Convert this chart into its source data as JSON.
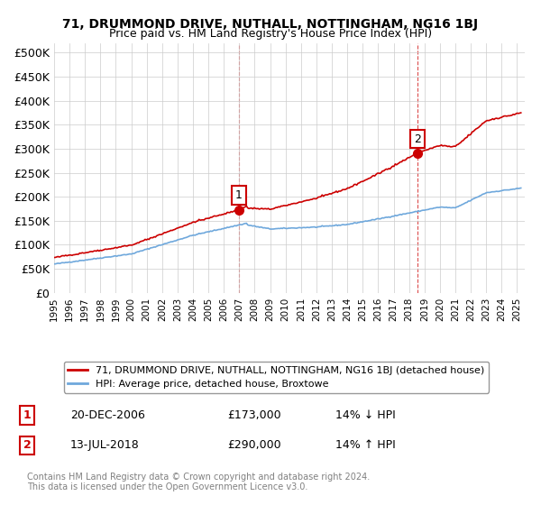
{
  "title": "71, DRUMMOND DRIVE, NUTHALL, NOTTINGHAM, NG16 1BJ",
  "subtitle": "Price paid vs. HM Land Registry's House Price Index (HPI)",
  "ylabel": "",
  "xlim_start": 1995.0,
  "xlim_end": 2025.5,
  "ylim": [
    0,
    520000
  ],
  "yticks": [
    0,
    50000,
    100000,
    150000,
    200000,
    250000,
    300000,
    350000,
    400000,
    450000,
    500000
  ],
  "ytick_labels": [
    "£0",
    "£50K",
    "£100K",
    "£150K",
    "£200K",
    "£250K",
    "£300K",
    "£350K",
    "£400K",
    "£450K",
    "£500K"
  ],
  "hpi_color": "#6fa8dc",
  "price_color": "#cc0000",
  "marker_color": "#cc0000",
  "sale1_x": 2006.97,
  "sale1_y": 173000,
  "sale1_label": "1",
  "sale2_x": 2018.54,
  "sale2_y": 290000,
  "sale2_label": "2",
  "legend_line1": "71, DRUMMOND DRIVE, NUTHALL, NOTTINGHAM, NG16 1BJ (detached house)",
  "legend_line2": "HPI: Average price, detached house, Broxtowe",
  "table_row1_num": "1",
  "table_row1_date": "20-DEC-2006",
  "table_row1_price": "£173,000",
  "table_row1_hpi": "14% ↓ HPI",
  "table_row2_num": "2",
  "table_row2_date": "13-JUL-2018",
  "table_row2_price": "£290,000",
  "table_row2_hpi": "14% ↑ HPI",
  "footnote": "Contains HM Land Registry data © Crown copyright and database right 2024.\nThis data is licensed under the Open Government Licence v3.0.",
  "background_color": "#ffffff",
  "grid_color": "#cccccc"
}
